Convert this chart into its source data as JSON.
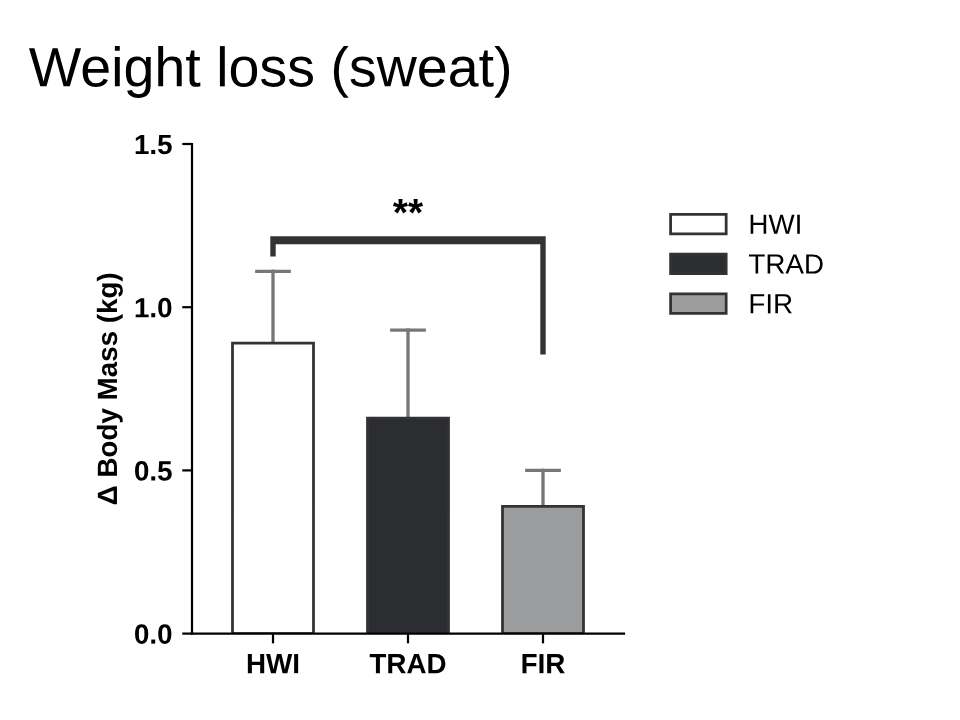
{
  "chart_data": {
    "type": "bar",
    "title": "Weight loss (sweat)",
    "ylabel": "Δ Body Mass (kg)",
    "categories": [
      "HWI",
      "TRAD",
      "FIR"
    ],
    "series": [
      {
        "name": "HWI",
        "color": "#ffffff",
        "values": [
          0.89,
          null,
          null
        ],
        "errors": [
          [
            0.89,
            1.11
          ],
          null,
          null
        ]
      },
      {
        "name": "TRAD",
        "color": "#2b2d30",
        "values": [
          null,
          0.66,
          null
        ],
        "errors": [
          null,
          [
            0.66,
            0.93
          ],
          null
        ]
      },
      {
        "name": "FIR",
        "color": "#9a9c9e",
        "values": [
          null,
          null,
          0.39
        ],
        "errors": [
          null,
          null,
          [
            0.39,
            0.5
          ]
        ]
      }
    ],
    "ylim": [
      0,
      1.5
    ],
    "yticks": [
      {
        "value": 0,
        "label": "0.0"
      },
      {
        "value": 0.5,
        "label": "0.5"
      },
      {
        "value": 1.0,
        "label": "1.0"
      },
      {
        "value": 1.5,
        "label": "1.5"
      }
    ],
    "grid": false,
    "legend": "right",
    "annotations": [
      "**"
    ]
  }
}
